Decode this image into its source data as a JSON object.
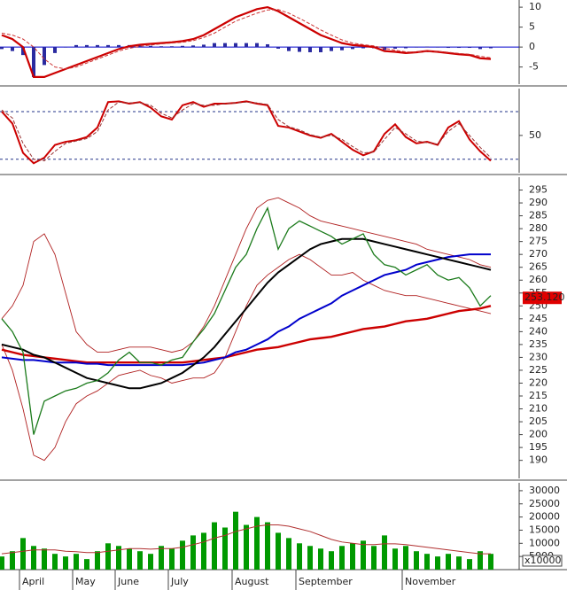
{
  "chart_data": [
    {
      "type": "line",
      "ylim": [
        -9.3,
        11.8
      ],
      "yticks": [
        10,
        5,
        0,
        -5
      ],
      "levels": [
        0
      ],
      "level_color": "#0000cc",
      "level_dash": false,
      "series": [
        {
          "style": "bar",
          "color": "#2a2aa0",
          "values": [
            -0.5,
            -1,
            -2,
            -7.5,
            -4.5,
            -1.5,
            0,
            0.5,
            0.5,
            0.5,
            0.5,
            0.5,
            0.5,
            0.4,
            0.3,
            0.2,
            0.2,
            0.3,
            0.4,
            0.6,
            1,
            1,
            1,
            1,
            1,
            0.7,
            -0.4,
            -1,
            -1.2,
            -1.3,
            -1.3,
            -1,
            -0.8,
            -0.5,
            -0.3,
            -0.3,
            -0.7,
            -0.4,
            -0.3,
            0,
            0.1,
            -0.1,
            -0.2,
            -0.2,
            -0.2,
            -0.5,
            -0.3
          ]
        },
        {
          "style": "line",
          "color": "#cc0000",
          "width": 2.2,
          "values": [
            3,
            2,
            0,
            -7.5,
            -7.5,
            -6.5,
            -5.5,
            -4.5,
            -3.5,
            -2.5,
            -1.5,
            -0.5,
            0.2,
            0.6,
            0.8,
            1,
            1.2,
            1.5,
            2,
            3,
            4.5,
            6,
            7.5,
            8.5,
            9.5,
            10,
            9,
            7.5,
            6,
            4.5,
            3,
            2,
            1,
            0.5,
            0.3,
            0,
            -1,
            -1.2,
            -1.5,
            -1.3,
            -1,
            -1.2,
            -1.5,
            -1.8,
            -2,
            -2.8,
            -3
          ]
        },
        {
          "style": "dashed",
          "color": "#cc3333",
          "width": 1,
          "values": [
            3.5,
            3,
            2,
            0,
            -3,
            -5,
            -5.5,
            -5,
            -4,
            -3,
            -2,
            -1,
            -0.3,
            0.2,
            0.5,
            0.8,
            1,
            1.2,
            1.6,
            2.4,
            3.5,
            5,
            6.5,
            7.5,
            8.5,
            9.3,
            9.4,
            8.5,
            7.2,
            5.8,
            4.3,
            3,
            1.8,
            1,
            0.6,
            0.3,
            -0.3,
            -0.8,
            -1.2,
            -1.3,
            -1.1,
            -1.1,
            -1.3,
            -1.6,
            -1.8,
            -2.3,
            -2.7
          ]
        }
      ]
    },
    {
      "type": "line",
      "ylim": [
        3,
        109
      ],
      "yticks": [
        50
      ],
      "levels": [
        20,
        80
      ],
      "level_color": "#223388",
      "level_dash": true,
      "series": [
        {
          "style": "line",
          "color": "#cc0000",
          "width": 2,
          "values": [
            80,
            65,
            28,
            15,
            22,
            38,
            42,
            44,
            48,
            60,
            92,
            93,
            90,
            92,
            85,
            74,
            70,
            88,
            92,
            86,
            90,
            90,
            91,
            93,
            90,
            88,
            62,
            60,
            55,
            50,
            47,
            52,
            42,
            32,
            25,
            30,
            52,
            64,
            48,
            40,
            42,
            38,
            60,
            68,
            45,
            30,
            18
          ]
        },
        {
          "style": "dashed",
          "color": "#993333",
          "width": 1,
          "values": [
            82,
            72,
            40,
            20,
            18,
            30,
            40,
            43,
            46,
            55,
            82,
            92,
            91,
            91,
            88,
            78,
            72,
            82,
            90,
            88,
            88,
            90,
            91,
            92,
            91,
            89,
            70,
            61,
            57,
            51,
            48,
            50,
            45,
            36,
            28,
            29,
            45,
            60,
            52,
            43,
            41,
            39,
            55,
            65,
            50,
            35,
            22
          ]
        }
      ]
    },
    {
      "type": "line",
      "ylim": [
        183,
        300
      ],
      "yticks": [
        190,
        195,
        200,
        205,
        210,
        215,
        220,
        225,
        230,
        235,
        240,
        245,
        250,
        255,
        260,
        265,
        270,
        275,
        280,
        285,
        290,
        295
      ],
      "current_value": 253.12,
      "current_label": "253.120",
      "current_color": "#e00000",
      "series": [
        {
          "style": "line",
          "color": "#b02020",
          "width": 0.9,
          "values": [
            245,
            250,
            258,
            275,
            278,
            270,
            255,
            240,
            235,
            232,
            232,
            233,
            234,
            234,
            234,
            233,
            232,
            233,
            236,
            242,
            250,
            260,
            270,
            280,
            288,
            291,
            292,
            290,
            288,
            285,
            283,
            282,
            281,
            280,
            279,
            278,
            277,
            276,
            275,
            274,
            272,
            271,
            270,
            269,
            268,
            266,
            265
          ]
        },
        {
          "style": "line",
          "color": "#b02020",
          "width": 0.9,
          "values": [
            235,
            225,
            210,
            192,
            190,
            195,
            205,
            212,
            215,
            217,
            220,
            223,
            224,
            225,
            223,
            222,
            220,
            221,
            222,
            222,
            224,
            230,
            240,
            250,
            258,
            262,
            265,
            268,
            270,
            268,
            265,
            262,
            262,
            263,
            260,
            258,
            256,
            255,
            254,
            254,
            253,
            252,
            251,
            250,
            249,
            248,
            247
          ]
        },
        {
          "style": "line",
          "color": "#cc0000",
          "width": 2.4,
          "values": [
            233,
            232,
            231,
            230.5,
            230,
            229.5,
            229,
            228.5,
            228,
            228,
            228,
            228,
            228,
            228,
            228,
            228,
            228,
            228,
            228.5,
            229,
            229.5,
            230,
            231,
            232,
            233,
            233.5,
            234,
            235,
            236,
            237,
            237.5,
            238,
            239,
            240,
            241,
            241.5,
            242,
            243,
            244,
            244.5,
            245,
            246,
            247,
            248,
            248.5,
            249,
            250
          ]
        },
        {
          "style": "line",
          "color": "#0000cc",
          "width": 2,
          "values": [
            230,
            229.5,
            229,
            229,
            228.5,
            228,
            228,
            228,
            227.5,
            227.5,
            227,
            227,
            227,
            227,
            227,
            227,
            227,
            227,
            227.5,
            228,
            229,
            230,
            232,
            233,
            235,
            237,
            240,
            242,
            245,
            247,
            249,
            251,
            254,
            256,
            258,
            260,
            262,
            263,
            264,
            266,
            267,
            268,
            269,
            269.5,
            270,
            270,
            270
          ]
        },
        {
          "style": "line",
          "color": "#000000",
          "width": 2,
          "values": [
            235,
            234,
            233,
            231,
            230,
            228,
            226,
            224,
            222,
            221,
            220,
            219,
            218,
            218,
            219,
            220,
            222,
            224,
            227,
            230,
            234,
            239,
            244,
            249,
            254,
            259,
            263,
            266,
            269,
            272,
            274,
            275,
            276,
            276,
            276,
            275,
            274,
            273,
            272,
            271,
            270,
            269,
            268,
            267,
            266,
            265,
            264
          ]
        },
        {
          "style": "line",
          "color": "#1a7a1a",
          "width": 1.3,
          "values": [
            245,
            240,
            232,
            200,
            213,
            215,
            217,
            218,
            220,
            221,
            224,
            229,
            232,
            228,
            228,
            227,
            229,
            230,
            236,
            241,
            247,
            256,
            265,
            270,
            280,
            288,
            272,
            280,
            283,
            281,
            279,
            277,
            274,
            276,
            278,
            270,
            266,
            265,
            262,
            264,
            266,
            262,
            260,
            261,
            257,
            250,
            254
          ]
        }
      ]
    },
    {
      "type": "bar",
      "ylim": [
        0,
        33000
      ],
      "yticks": [
        5000,
        10000,
        15000,
        20000,
        25000,
        30000
      ],
      "unit_label": "x10000",
      "categories": [
        null,
        null,
        "April",
        null,
        null,
        null,
        null,
        "May",
        null,
        null,
        null,
        "June",
        null,
        null,
        null,
        null,
        "July",
        null,
        null,
        null,
        null,
        null,
        "August",
        null,
        null,
        null,
        null,
        null,
        "September",
        null,
        null,
        null,
        null,
        null,
        null,
        null,
        null,
        null,
        "November",
        null,
        null,
        null,
        null,
        null,
        null,
        null,
        null
      ],
      "series": [
        {
          "style": "bar",
          "color": "#009900",
          "values": [
            5000,
            7000,
            12000,
            9000,
            8000,
            6000,
            5000,
            6000,
            4000,
            7000,
            10000,
            9000,
            8000,
            7000,
            6000,
            9000,
            8000,
            11000,
            13000,
            14000,
            18000,
            16000,
            22000,
            17000,
            20000,
            18000,
            14000,
            12000,
            10000,
            9000,
            8000,
            7000,
            9000,
            10000,
            11000,
            9000,
            13000,
            8000,
            9000,
            7000,
            6000,
            5000,
            6000,
            5000,
            4000,
            7000,
            6000
          ]
        },
        {
          "style": "line",
          "color": "#b03030",
          "width": 1,
          "values": [
            6000,
            6500,
            7000,
            7500,
            7500,
            7500,
            7000,
            6800,
            6500,
            6500,
            7000,
            7500,
            8000,
            8000,
            7800,
            8000,
            8000,
            8500,
            9500,
            10500,
            12000,
            13000,
            14500,
            15500,
            16500,
            17000,
            17000,
            16500,
            15500,
            14500,
            13000,
            11500,
            10500,
            10000,
            9500,
            9500,
            9800,
            9800,
            9500,
            9000,
            8500,
            8000,
            7500,
            7000,
            6500,
            6000,
            6000
          ]
        }
      ]
    }
  ]
}
